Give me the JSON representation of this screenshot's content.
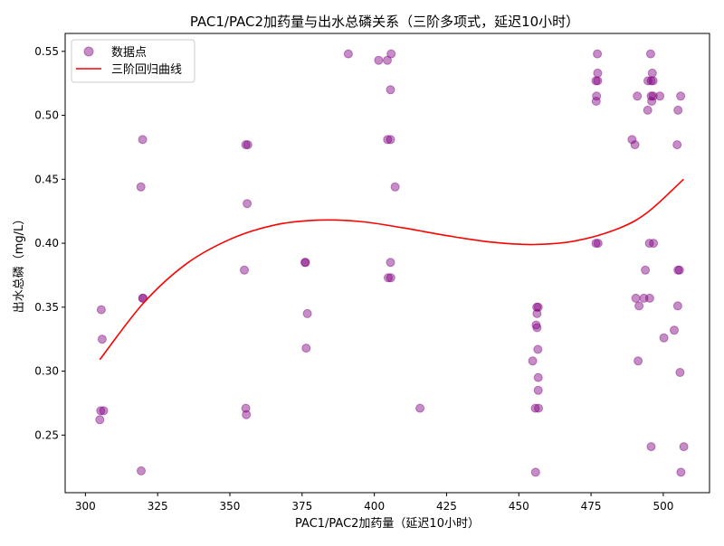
{
  "chart_data": {
    "type": "scatter",
    "title": "PAC1/PAC2加药量与出水总磷关系（三阶多项式，延迟10小时）",
    "xlabel": "PAC1/PAC2加药量（延迟10小时）",
    "ylabel": "出水总磷（mg/L）",
    "xlim": [
      293,
      516
    ],
    "ylim": [
      0.205,
      0.564
    ],
    "xticks": [
      300,
      325,
      350,
      375,
      400,
      425,
      450,
      475,
      500
    ],
    "yticks": [
      0.25,
      0.3,
      0.35,
      0.4,
      0.45,
      0.5,
      0.55
    ],
    "ytick_labels": [
      "0.25",
      "0.30",
      "0.35",
      "0.40",
      "0.45",
      "0.50",
      "0.55"
    ],
    "grid": false,
    "legend_position": "top-left",
    "colors": {
      "points": "#800080",
      "curve": "#ff0000"
    },
    "series": [
      {
        "name": "数据点",
        "kind": "scatter",
        "points": [
          [
            305.5,
            0.348
          ],
          [
            305.8,
            0.325
          ],
          [
            305.3,
            0.269
          ],
          [
            306.3,
            0.269
          ],
          [
            305.0,
            0.262
          ],
          [
            319.8,
            0.481
          ],
          [
            319.2,
            0.444
          ],
          [
            319.8,
            0.357
          ],
          [
            320.0,
            0.357
          ],
          [
            319.3,
            0.222
          ],
          [
            355.5,
            0.477
          ],
          [
            356.2,
            0.477
          ],
          [
            356.0,
            0.431
          ],
          [
            355.0,
            0.379
          ],
          [
            355.5,
            0.271
          ],
          [
            355.7,
            0.266
          ],
          [
            376.2,
            0.385
          ],
          [
            376.0,
            0.385
          ],
          [
            376.8,
            0.345
          ],
          [
            376.4,
            0.318
          ],
          [
            391.0,
            0.548
          ],
          [
            401.5,
            0.543
          ],
          [
            404.5,
            0.543
          ],
          [
            405.8,
            0.548
          ],
          [
            405.6,
            0.52
          ],
          [
            404.6,
            0.481
          ],
          [
            405.6,
            0.481
          ],
          [
            407.2,
            0.444
          ],
          [
            405.6,
            0.385
          ],
          [
            404.8,
            0.373
          ],
          [
            405.7,
            0.373
          ],
          [
            415.8,
            0.271
          ],
          [
            456.2,
            0.35
          ],
          [
            456.7,
            0.35
          ],
          [
            456.3,
            0.345
          ],
          [
            456.0,
            0.336
          ],
          [
            456.3,
            0.334
          ],
          [
            456.6,
            0.317
          ],
          [
            454.8,
            0.308
          ],
          [
            456.7,
            0.295
          ],
          [
            456.7,
            0.285
          ],
          [
            455.7,
            0.271
          ],
          [
            456.8,
            0.271
          ],
          [
            455.8,
            0.221
          ],
          [
            477.2,
            0.548
          ],
          [
            477.3,
            0.533
          ],
          [
            476.7,
            0.527
          ],
          [
            477.3,
            0.527
          ],
          [
            476.9,
            0.515
          ],
          [
            476.8,
            0.511
          ],
          [
            476.7,
            0.4
          ],
          [
            477.4,
            0.4
          ],
          [
            495.6,
            0.548
          ],
          [
            496.2,
            0.533
          ],
          [
            494.7,
            0.527
          ],
          [
            495.8,
            0.527
          ],
          [
            496.5,
            0.527
          ],
          [
            491.0,
            0.515
          ],
          [
            495.8,
            0.515
          ],
          [
            496.5,
            0.515
          ],
          [
            498.8,
            0.515
          ],
          [
            496.0,
            0.511
          ],
          [
            494.6,
            0.504
          ],
          [
            489.2,
            0.481
          ],
          [
            490.2,
            0.477
          ],
          [
            495.2,
            0.4
          ],
          [
            496.6,
            0.4
          ],
          [
            493.8,
            0.379
          ],
          [
            490.5,
            0.357
          ],
          [
            493.3,
            0.357
          ],
          [
            495.3,
            0.357
          ],
          [
            491.6,
            0.351
          ],
          [
            491.3,
            0.308
          ],
          [
            495.8,
            0.241
          ],
          [
            506.0,
            0.515
          ],
          [
            505.1,
            0.504
          ],
          [
            504.8,
            0.477
          ],
          [
            505.1,
            0.379
          ],
          [
            505.6,
            0.379
          ],
          [
            505.0,
            0.351
          ],
          [
            503.8,
            0.332
          ],
          [
            500.2,
            0.326
          ],
          [
            505.8,
            0.299
          ],
          [
            507.1,
            0.241
          ],
          [
            506.1,
            0.221
          ]
        ]
      },
      {
        "name": "三阶回归曲线",
        "kind": "line",
        "x_range": [
          305,
          507
        ],
        "points": [
          [
            305,
            0.309
          ],
          [
            320,
            0.353
          ],
          [
            335,
            0.384
          ],
          [
            350,
            0.403
          ],
          [
            365,
            0.414
          ],
          [
            380,
            0.418
          ],
          [
            395,
            0.417
          ],
          [
            410,
            0.412
          ],
          [
            425,
            0.406
          ],
          [
            440,
            0.401
          ],
          [
            455,
            0.399
          ],
          [
            470,
            0.402
          ],
          [
            485,
            0.412
          ],
          [
            495,
            0.425
          ],
          [
            507,
            0.45
          ]
        ]
      }
    ]
  }
}
